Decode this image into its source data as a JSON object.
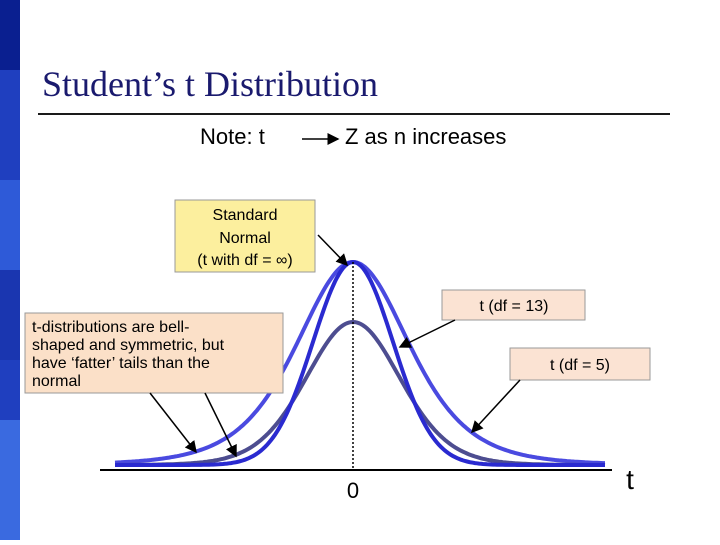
{
  "header": {
    "title": "Student’s t Distribution"
  },
  "note": {
    "prefix": "Note:  t",
    "suffix": "Z  as  n  increases"
  },
  "callouts": {
    "normal": [
      "Standard",
      "Normal",
      "(t with df = ∞)"
    ],
    "df13": "t  (df = 13)",
    "df5": "t  (df = 5)",
    "tails": [
      "t-distributions are bell-",
      "shaped and symmetric, but",
      "have ‘fatter’ tails than the",
      "normal"
    ]
  },
  "axis": {
    "zero": "0",
    "t": "t"
  }
}
